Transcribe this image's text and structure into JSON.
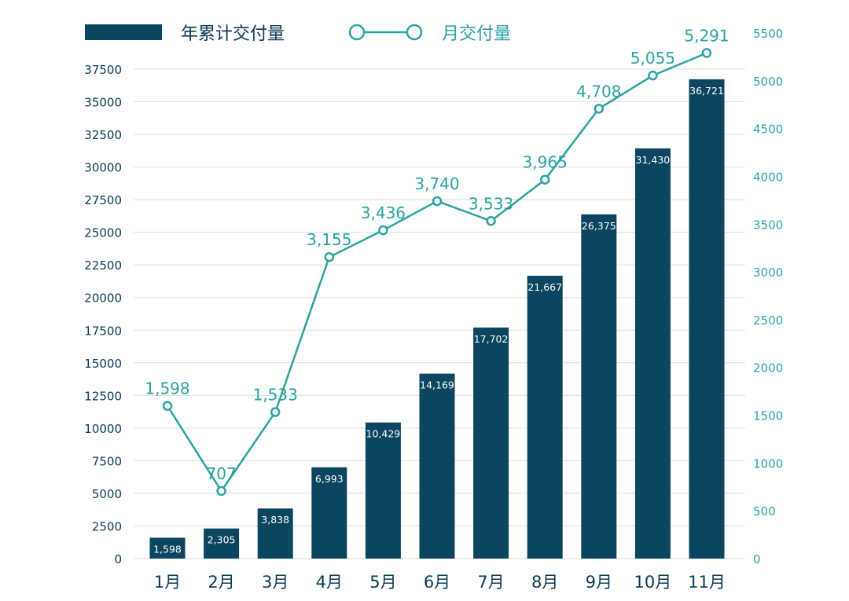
{
  "colors": {
    "bar": "#0b4560",
    "line": "#2aa3a0",
    "grid": "#d9dfe2",
    "axis_text_left": "#0b3a52",
    "axis_text_right": "#2aa3a0",
    "bar_label": "#ffffff",
    "background": "#ffffff"
  },
  "legend": {
    "position": "top",
    "bar_label": "年累计交付量",
    "line_label": "月交付量"
  },
  "chart_data": {
    "type": "bar",
    "categories": [
      "1月",
      "2月",
      "3月",
      "4月",
      "5月",
      "6月",
      "7月",
      "8月",
      "9月",
      "10月",
      "11月"
    ],
    "series": [
      {
        "name": "年累计交付量",
        "type": "bar",
        "axis": "left",
        "values": [
          1598,
          2305,
          3838,
          6993,
          10429,
          14169,
          17702,
          21667,
          26375,
          31430,
          36721
        ],
        "labels": [
          "1,598",
          "2,305",
          "3,838",
          "6,993",
          "10,429",
          "14,169",
          "17,702",
          "21,667",
          "26,375",
          "31,430",
          "36,721"
        ]
      },
      {
        "name": "月交付量",
        "type": "line",
        "axis": "right",
        "values": [
          1598,
          707,
          1533,
          3155,
          3436,
          3740,
          3533,
          3965,
          4708,
          5055,
          5291
        ],
        "labels": [
          "1,598",
          "707",
          "1,533",
          "3,155",
          "3,436",
          "3,740",
          "3,533",
          "3,965",
          "4,708",
          "5,055",
          "5,291"
        ]
      }
    ],
    "y_left": {
      "ylim": [
        0,
        37500
      ],
      "ticks": [
        0,
        2500,
        5000,
        7500,
        10000,
        12500,
        15000,
        17500,
        20000,
        22500,
        25000,
        27500,
        30000,
        32500,
        35000,
        37500
      ],
      "tick_labels": [
        "0",
        "2500",
        "5000",
        "7500",
        "10000",
        "12500",
        "15000",
        "17500",
        "20000",
        "22500",
        "25000",
        "27500",
        "30000",
        "32500",
        "35000",
        "37500"
      ]
    },
    "y_right": {
      "ylim": [
        0,
        5500
      ],
      "ticks": [
        0,
        500,
        1000,
        1500,
        2000,
        2500,
        3000,
        3500,
        4000,
        4500,
        5000,
        5500
      ],
      "tick_labels": [
        "0",
        "500",
        "1000",
        "1500",
        "2000",
        "2500",
        "3000",
        "3500",
        "4000",
        "4500",
        "5000",
        "5500"
      ]
    },
    "grid": true
  }
}
